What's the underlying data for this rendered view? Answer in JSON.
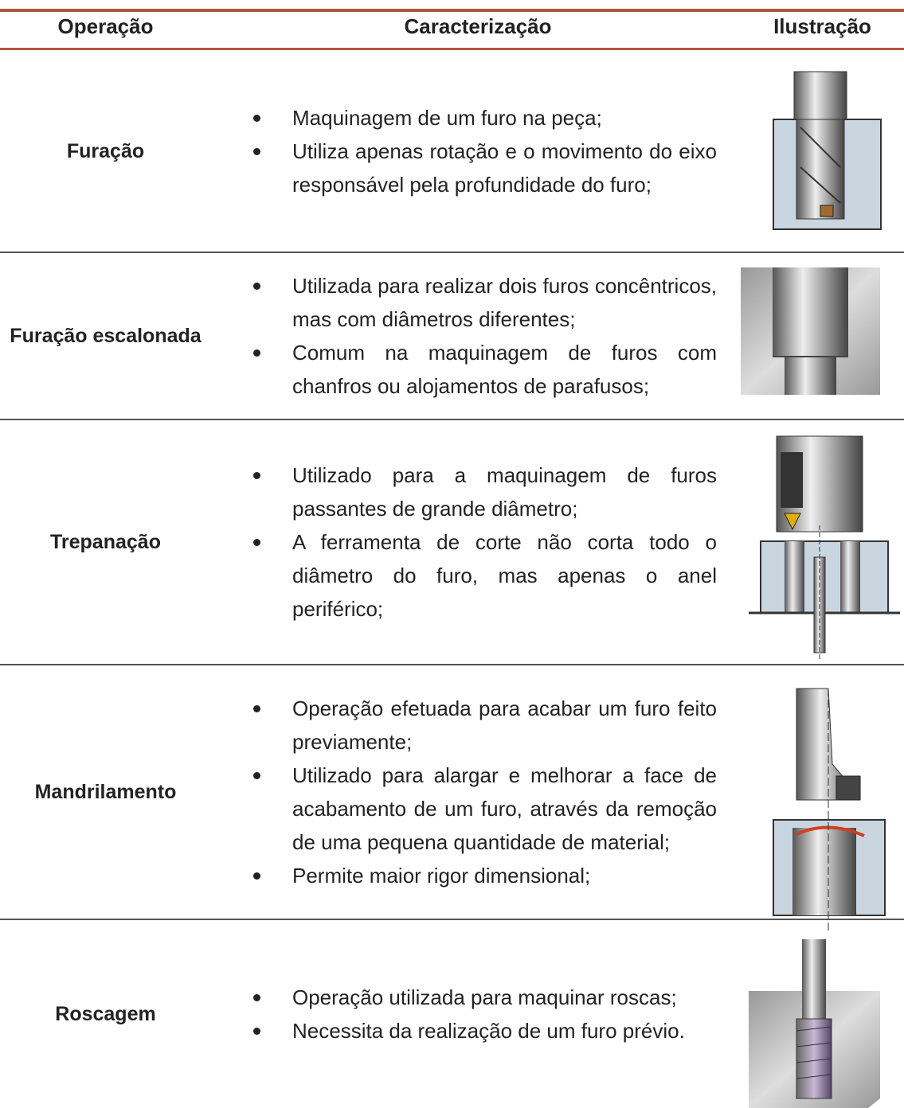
{
  "header": {
    "columns": [
      "Operação",
      "Caracterização",
      "Ilustração"
    ]
  },
  "rows": [
    {
      "operation": "Furação",
      "bullets": [
        "Maquinagem de um furo na peça;",
        "Utiliza apenas rotação e o movimento do eixo responsável pela profundidade do furo;"
      ]
    },
    {
      "operation": "Furação escalonada",
      "bullets": [
        "Utilizada para realizar dois furos concêntricos, mas com diâmetros diferentes;",
        "Comum na maquinagem de furos com chanfros ou alojamentos de parafusos;"
      ]
    },
    {
      "operation": "Trepanação",
      "bullets": [
        "Utilizado para a maquinagem de furos passantes de grande diâmetro;",
        "A ferramenta de corte não corta todo o diâmetro do furo, mas apenas o anel periférico;"
      ]
    },
    {
      "operation": "Mandrilamento",
      "bullets": [
        "Operação efetuada para acabar um furo feito previamente;",
        "Utilizado para alargar e melhorar a face de acabamento de um furo, através da remoção de uma pequena quantidade de material;",
        "Permite maior rigor dimensional;"
      ]
    },
    {
      "operation": "Roscagem",
      "bullets": [
        "Operação utilizada para maquinar roscas;",
        "Necessita da realização de um furo prévio."
      ]
    }
  ]
}
